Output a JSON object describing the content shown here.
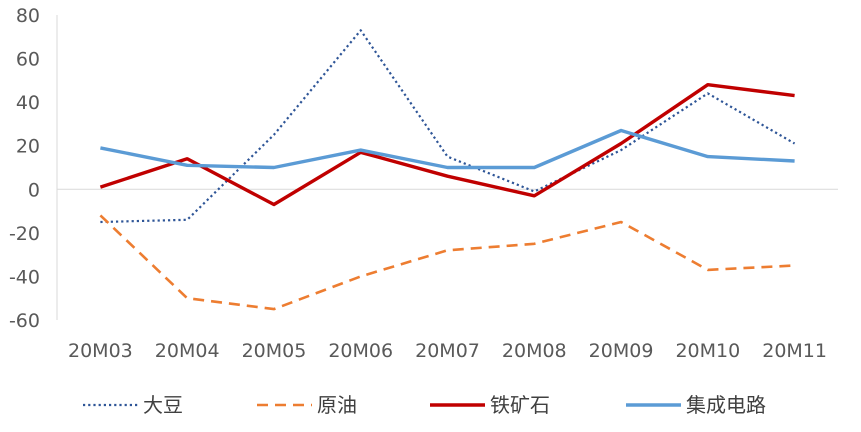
{
  "chart_data": {
    "type": "line",
    "categories": [
      "20M03",
      "20M04",
      "20M05",
      "20M06",
      "20M07",
      "20M08",
      "20M09",
      "20M10",
      "20M11"
    ],
    "ylim": [
      -60,
      80
    ],
    "yticks": [
      -60,
      -40,
      -20,
      0,
      20,
      40,
      60,
      80
    ],
    "grid": false,
    "legend_position": "bottom",
    "series": [
      {
        "name": "大豆",
        "color": "#2E5597",
        "style": "dotted",
        "values": [
          -15,
          -14,
          25,
          73,
          15,
          -1,
          18,
          44,
          21
        ]
      },
      {
        "name": "原油",
        "color": "#ED7D31",
        "style": "dashed",
        "values": [
          -12,
          -50,
          -55,
          -40,
          -28,
          -25,
          -15,
          -37,
          -35
        ]
      },
      {
        "name": "铁矿石",
        "color": "#C00000",
        "style": "solid",
        "values": [
          1,
          14,
          -7,
          17,
          6,
          -3,
          21,
          48,
          43
        ]
      },
      {
        "name": "集成电路",
        "color": "#5B9BD5",
        "style": "solid",
        "values": [
          19,
          11,
          10,
          18,
          10,
          10,
          27,
          15,
          13
        ]
      }
    ]
  }
}
